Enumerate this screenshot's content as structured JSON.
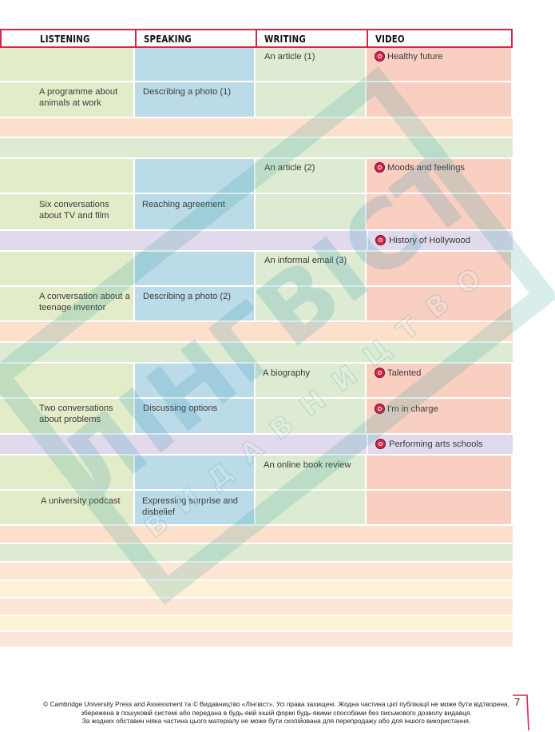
{
  "header": {
    "listening": "LISTENING",
    "speaking": "SPEAKING",
    "writing": "WRITING",
    "video": "VIDEO"
  },
  "rows": [
    {
      "writing": "An article (1)",
      "video": "Healthy future"
    },
    {
      "listening": "A programme about animals at work",
      "speaking": "Describing a photo (1)"
    },
    {
      "writing": "An article (2)",
      "video": "Moods and feelings"
    },
    {
      "listening": "Six conversations about TV and film",
      "speaking": "Reaching agreement"
    },
    {
      "video": "History of Hollywood"
    },
    {
      "writing": "An informal email (3)"
    },
    {
      "listening": "A conversation about a teenage inventor",
      "speaking": "Describing a photo (2)"
    },
    {
      "writing": "A biography",
      "video": "Talented"
    },
    {
      "listening": "Two conversations about problems",
      "speaking": "Discussing options",
      "video": "I'm in charge"
    },
    {
      "video": "Performing arts schools"
    },
    {
      "writing": "An online book review"
    },
    {
      "listening": "A university podcast",
      "speaking": "Expressing surprise and disbelief"
    }
  ],
  "watermark": {
    "main": "ЛІНГВІСТ",
    "sub": "ВИДАВНИЦТВО"
  },
  "footer": {
    "line1": "© Cambridge University Press and Assessment та © Видавництво «Лінгвіст». Усі права захищені. Жодна частина цієї публікації не може бути відтворена,",
    "line2": "збережена в пошуковій системі або передана в будь-якій іншій формі будь-якими способами без письмового дозволу видавця.",
    "line3": "За жодних обставин ніяка частина цього матеріалу не може бути скопійована для перепродажу або для іншого використання."
  },
  "page_number": "7",
  "colors": {
    "accent": "#d6254a",
    "listening": "#e2ecc8",
    "speaking": "#bcdbe8",
    "writing": "#dcebd2",
    "video": "#f9cfc2"
  },
  "icons": {
    "video": "video-play-icon"
  }
}
